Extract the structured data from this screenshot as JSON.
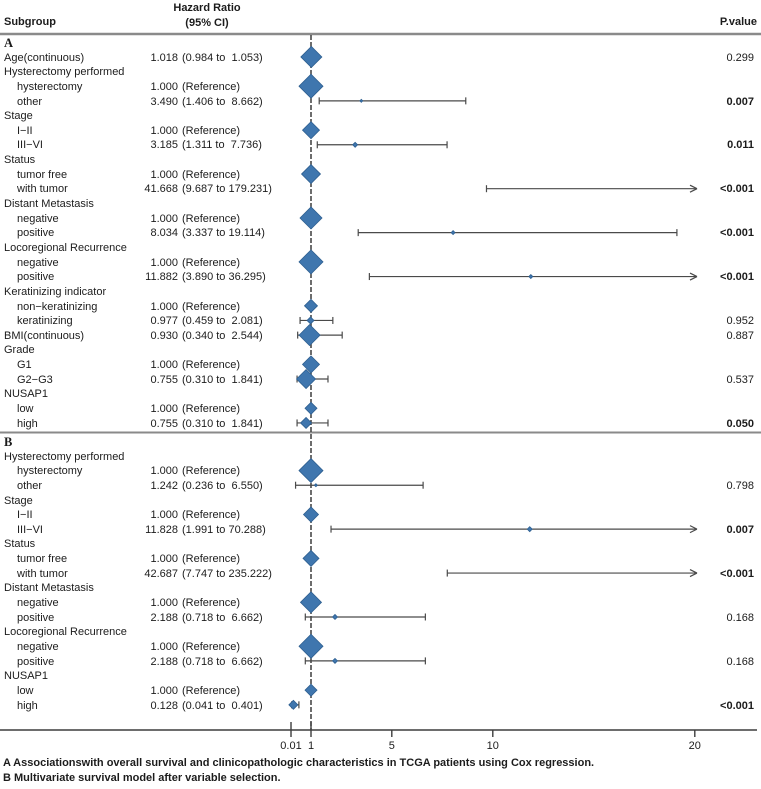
{
  "chart_data": {
    "type": "forest",
    "columns": {
      "subgroup": "Subgroup",
      "hazard_ratio_line1": "Hazard Ratio",
      "hazard_ratio_line2": "(95% CI)",
      "p_value": "P.value"
    },
    "axis": {
      "scale": "linear-compressed-left",
      "ticks": [
        0.01,
        1,
        5,
        10,
        20
      ],
      "tick_labels": [
        "0.01",
        "1",
        "5",
        "10",
        "20"
      ],
      "reference_value": 1,
      "clip_upper": 20.1
    },
    "marker_color": "#3f76ae",
    "marker_stroke": "#2e5f90",
    "line_color": "#4a4a4a",
    "sections": [
      {
        "label": "A",
        "rows": [
          {
            "label": "Age(continuous)",
            "indent": 0,
            "hr": "1.018 (0.984 to  1.053)",
            "p": "0.299",
            "p_bold": false,
            "est": 1.018,
            "lo": 0.984,
            "hi": 1.053,
            "marker": "diamond",
            "size": 21,
            "bar": false
          },
          {
            "label": "Hysterectomy performed",
            "indent": 0
          },
          {
            "label": "hysterectomy",
            "indent": 1,
            "hr": "1.000 (Reference)",
            "est": 1,
            "marker": "diamond",
            "size": 24,
            "bar": false
          },
          {
            "label": "other",
            "indent": 1,
            "hr": "3.490 (1.406 to  8.662)",
            "p": "0.007",
            "p_bold": true,
            "est": 3.49,
            "lo": 1.406,
            "hi": 8.662,
            "marker": "dot",
            "size": 3,
            "bar": true
          },
          {
            "label": "Stage",
            "indent": 0
          },
          {
            "label": "I−II",
            "indent": 1,
            "hr": "1.000 (Reference)",
            "est": 1,
            "marker": "diamond",
            "size": 17,
            "bar": false
          },
          {
            "label": "III−VI",
            "indent": 1,
            "hr": "3.185 (1.311 to  7.736)",
            "p": "0.011",
            "p_bold": true,
            "est": 3.185,
            "lo": 1.311,
            "hi": 7.736,
            "marker": "dot",
            "size": 5,
            "bar": true
          },
          {
            "label": "Status",
            "indent": 0
          },
          {
            "label": "tumor free",
            "indent": 1,
            "hr": "1.000 (Reference)",
            "est": 1,
            "marker": "diamond",
            "size": 19,
            "bar": false
          },
          {
            "label": "with tumor",
            "indent": 1,
            "hr": "41.668 (9.687 to 179.231)",
            "p": "<0.001",
            "p_bold": true,
            "est": 41.668,
            "lo": 9.687,
            "hi": 179.231,
            "marker": "dot",
            "size": 3,
            "bar": true
          },
          {
            "label": "Distant Metastasis",
            "indent": 0
          },
          {
            "label": "negative",
            "indent": 1,
            "hr": "1.000 (Reference)",
            "est": 1,
            "marker": "diamond",
            "size": 22,
            "bar": false
          },
          {
            "label": "positive",
            "indent": 1,
            "hr": "8.034 (3.337 to 19.114)",
            "p": "<0.001",
            "p_bold": true,
            "est": 8.034,
            "lo": 3.337,
            "hi": 19.114,
            "marker": "dot",
            "size": 4,
            "bar": true
          },
          {
            "label": "Locoregional Recurrence",
            "indent": 0
          },
          {
            "label": "negative",
            "indent": 1,
            "hr": "1.000 (Reference)",
            "est": 1,
            "marker": "diamond",
            "size": 24,
            "bar": false
          },
          {
            "label": "positive",
            "indent": 1,
            "hr": "11.882 (3.890 to 36.295)",
            "p": "<0.001",
            "p_bold": true,
            "est": 11.882,
            "lo": 3.89,
            "hi": 36.295,
            "marker": "dot",
            "size": 4,
            "bar": true
          },
          {
            "label": "Keratinizing indicator",
            "indent": 0
          },
          {
            "label": "non−keratinizing",
            "indent": 1,
            "hr": "1.000 (Reference)",
            "est": 1,
            "marker": "diamond",
            "size": 13,
            "bar": false
          },
          {
            "label": "keratinizing",
            "indent": 1,
            "hr": "0.977 (0.459 to  2.081)",
            "p": "0.952",
            "p_bold": false,
            "est": 0.977,
            "lo": 0.459,
            "hi": 2.081,
            "marker": "diamond",
            "size": 7,
            "bar": true
          },
          {
            "label": "BMI(continuous)",
            "indent": 0,
            "hr": "0.930 (0.340 to  2.544)",
            "p": "0.887",
            "p_bold": false,
            "est": 0.93,
            "lo": 0.34,
            "hi": 2.544,
            "marker": "diamond",
            "size": 21,
            "bar": true
          },
          {
            "label": "Grade",
            "indent": 0
          },
          {
            "label": "G1",
            "indent": 1,
            "hr": "1.000 (Reference)",
            "est": 1,
            "marker": "diamond",
            "size": 17,
            "bar": false
          },
          {
            "label": "G2−G3",
            "indent": 1,
            "hr": "0.755 (0.310 to  1.841)",
            "p": "0.537",
            "p_bold": false,
            "est": 0.755,
            "lo": 0.31,
            "hi": 1.841,
            "marker": "diamond",
            "size": 19,
            "bar": true
          },
          {
            "label": "NUSAP1",
            "indent": 0
          },
          {
            "label": "low",
            "indent": 1,
            "hr": "1.000 (Reference)",
            "est": 1,
            "marker": "diamond",
            "size": 12,
            "bar": false
          },
          {
            "label": "high",
            "indent": 1,
            "hr": "0.755 (0.310 to  1.841)",
            "p": "0.050",
            "p_bold": true,
            "est": 0.755,
            "lo": 0.31,
            "hi": 1.841,
            "marker": "diamond",
            "size": 11,
            "bar": true
          }
        ]
      },
      {
        "label": "B",
        "rows": [
          {
            "label": "Hysterectomy performed",
            "indent": 0
          },
          {
            "label": "hysterectomy",
            "indent": 1,
            "hr": "1.000 (Reference)",
            "est": 1,
            "marker": "diamond",
            "size": 24,
            "bar": false
          },
          {
            "label": "other",
            "indent": 1,
            "hr": "1.242 (0.236 to  6.550)",
            "p": "0.798",
            "p_bold": false,
            "est": 1.242,
            "lo": 0.236,
            "hi": 6.55,
            "marker": "dot",
            "size": 3,
            "bar": true
          },
          {
            "label": "Stage",
            "indent": 0
          },
          {
            "label": "I−II",
            "indent": 1,
            "hr": "1.000 (Reference)",
            "est": 1,
            "marker": "diamond",
            "size": 15,
            "bar": false
          },
          {
            "label": "III−VI",
            "indent": 1,
            "hr": "11.828 (1.991 to 70.288)",
            "p": "0.007",
            "p_bold": true,
            "est": 11.828,
            "lo": 1.991,
            "hi": 70.288,
            "marker": "dot",
            "size": 5,
            "bar": true
          },
          {
            "label": "Status",
            "indent": 0
          },
          {
            "label": "tumor free",
            "indent": 1,
            "hr": "1.000 (Reference)",
            "est": 1,
            "marker": "diamond",
            "size": 16,
            "bar": false
          },
          {
            "label": "with tumor",
            "indent": 1,
            "hr": "42.687 (7.747 to 235.222)",
            "p": "<0.001",
            "p_bold": true,
            "est": 42.687,
            "lo": 7.747,
            "hi": 235.222,
            "marker": "dot",
            "size": 3,
            "bar": true
          },
          {
            "label": "Distant Metastasis",
            "indent": 0
          },
          {
            "label": "negative",
            "indent": 1,
            "hr": "1.000 (Reference)",
            "est": 1,
            "marker": "diamond",
            "size": 21,
            "bar": false
          },
          {
            "label": "positive",
            "indent": 1,
            "hr": "2.188 (0.718 to  6.662)",
            "p": "0.168",
            "p_bold": false,
            "est": 2.188,
            "lo": 0.718,
            "hi": 6.662,
            "marker": "dot",
            "size": 5,
            "bar": true
          },
          {
            "label": "Locoregional Recurrence",
            "indent": 0
          },
          {
            "label": "negative",
            "indent": 1,
            "hr": "1.000 (Reference)",
            "est": 1,
            "marker": "diamond",
            "size": 24,
            "bar": false
          },
          {
            "label": "positive",
            "indent": 1,
            "hr": "2.188 (0.718 to  6.662)",
            "p": "0.168",
            "p_bold": false,
            "est": 2.188,
            "lo": 0.718,
            "hi": 6.662,
            "marker": "dot",
            "size": 5,
            "bar": true
          },
          {
            "label": "NUSAP1",
            "indent": 0
          },
          {
            "label": "low",
            "indent": 1,
            "hr": "1.000 (Reference)",
            "est": 1,
            "marker": "diamond",
            "size": 12,
            "bar": false
          },
          {
            "label": "high",
            "indent": 1,
            "hr": "0.128 (0.041 to  0.401)",
            "p": "<0.001",
            "p_bold": true,
            "est": 0.128,
            "lo": 0.041,
            "hi": 0.401,
            "marker": "diamond",
            "size": 9,
            "bar": true
          }
        ]
      }
    ],
    "captions": [
      "A Associationswith overall survival and clinicopathologic characteristics in TCGA patients using Cox regression.",
      "B Multivariate survival model after variable selection."
    ]
  }
}
